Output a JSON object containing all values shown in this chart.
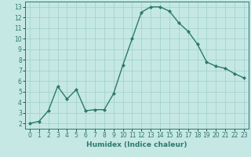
{
  "x": [
    0,
    1,
    2,
    3,
    4,
    5,
    6,
    7,
    8,
    9,
    10,
    11,
    12,
    13,
    14,
    15,
    16,
    17,
    18,
    19,
    20,
    21,
    22,
    23
  ],
  "y": [
    2.0,
    2.2,
    3.2,
    5.5,
    4.3,
    5.2,
    3.2,
    3.3,
    3.3,
    4.8,
    7.5,
    10.0,
    12.5,
    13.0,
    13.0,
    12.6,
    11.5,
    10.7,
    9.5,
    7.8,
    7.4,
    7.2,
    6.7,
    6.3
  ],
  "line_color": "#2d7a6a",
  "marker": "D",
  "marker_size": 2.0,
  "bg_color": "#c5e8e5",
  "grid_color": "#9ecfcc",
  "xlabel": "Humidex (Indice chaleur)",
  "ylim": [
    1.5,
    13.5
  ],
  "xlim": [
    -0.5,
    23.5
  ],
  "yticks": [
    2,
    3,
    4,
    5,
    6,
    7,
    8,
    9,
    10,
    11,
    12,
    13
  ],
  "xticks": [
    0,
    1,
    2,
    3,
    4,
    5,
    6,
    7,
    8,
    9,
    10,
    11,
    12,
    13,
    14,
    15,
    16,
    17,
    18,
    19,
    20,
    21,
    22,
    23
  ],
  "tick_color": "#2d7a6a",
  "label_color": "#2d7a6a",
  "xlabel_fontsize": 6.5,
  "tick_fontsize": 5.5,
  "line_width": 1.0,
  "spine_color": "#2d7a6a"
}
